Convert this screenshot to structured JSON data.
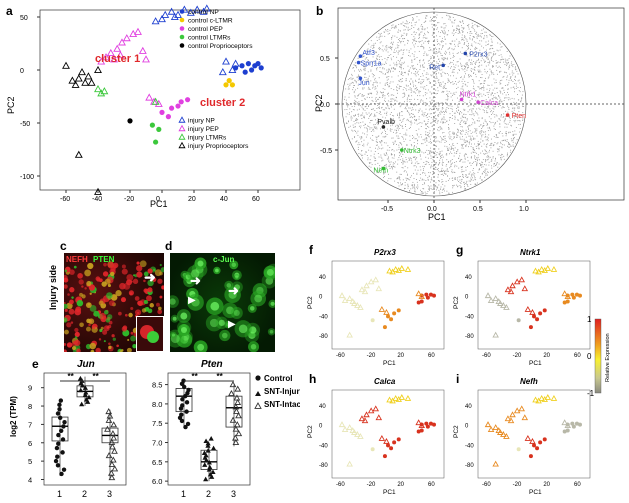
{
  "panels": {
    "a": {
      "letter": "a",
      "xlabel": "PC1",
      "ylabel": "PC2",
      "xticks": [
        "-60",
        "-40",
        "-20",
        "0",
        "20",
        "40",
        "60"
      ],
      "yticks": [
        "50",
        "0",
        "-50",
        "-100"
      ],
      "cluster1": "cluster 1",
      "cluster2": "cluster 2",
      "legend": [
        {
          "label": "control NP",
          "color": "#1d3fd0",
          "marker": "dot"
        },
        {
          "label": "control c-LTMR",
          "color": "#f4c800",
          "marker": "dot"
        },
        {
          "label": "control PEP",
          "color": "#e040e0",
          "marker": "dot"
        },
        {
          "label": "control LTMRs",
          "color": "#3cc83c",
          "marker": "dot"
        },
        {
          "label": "control Proprioceptors",
          "color": "#000000",
          "marker": "dot"
        },
        {
          "label": "injury NP",
          "color": "#1d3fd0",
          "marker": "tri"
        },
        {
          "label": "injury PEP",
          "color": "#e040e0",
          "marker": "tri"
        },
        {
          "label": "injury LTMRs",
          "color": "#3cc83c",
          "marker": "tri"
        },
        {
          "label": "injury Proprioceptors",
          "color": "#000000",
          "marker": "tri"
        }
      ]
    },
    "b": {
      "letter": "b",
      "xlabel": "PC1",
      "ylabel": "PC2",
      "xticks": [
        "-0.5",
        "0.0",
        "0.5",
        "1.0"
      ],
      "yticks": [
        "0.5",
        "0.0",
        "-0.5"
      ],
      "genes": [
        {
          "name": "Atf3",
          "color": "#3355cc"
        },
        {
          "name": "Sprr1a",
          "color": "#3355cc"
        },
        {
          "name": "Jun",
          "color": "#3355cc"
        },
        {
          "name": "Ret",
          "color": "#2244aa"
        },
        {
          "name": "P2rx3",
          "color": "#2244aa"
        },
        {
          "name": "Ntrk1",
          "color": "#d040d0"
        },
        {
          "name": "Calca",
          "color": "#d040d0"
        },
        {
          "name": "Pten",
          "color": "#e03030"
        },
        {
          "name": "Pvalb",
          "color": "#222222"
        },
        {
          "name": "Nefh",
          "color": "#33bb33"
        },
        {
          "name": "Ntrk3",
          "color": "#33bb33"
        }
      ]
    },
    "c": {
      "letter": "c",
      "label1": "NEFH",
      "label2": "PTEN",
      "side": "Injury side"
    },
    "d": {
      "letter": "d",
      "label": "c-Jun"
    },
    "e": {
      "letter": "e",
      "ylabel": "log2 (TPM)",
      "plots": [
        {
          "title": "Jun",
          "yticks": [
            "9",
            "8",
            "7",
            "6",
            "5",
            "4"
          ],
          "xticks": [
            "1",
            "2",
            "3"
          ],
          "sig1": "**",
          "sig2": "**"
        },
        {
          "title": "Pten",
          "yticks": [
            "8.5",
            "8.0",
            "7.5",
            "7.0",
            "6.5",
            "6.0"
          ],
          "xticks": [
            "1",
            "2",
            "3"
          ],
          "sig1": "**",
          "sig2": "**"
        }
      ],
      "legend": [
        "Control",
        "SNT-Injury",
        "SNT-Intact"
      ]
    },
    "f": {
      "letter": "f",
      "title": "P2rx3"
    },
    "g": {
      "letter": "g",
      "title": "Ntrk1"
    },
    "h": {
      "letter": "h",
      "title": "Calca"
    },
    "i": {
      "letter": "i",
      "title": "Nefh"
    },
    "small": {
      "xlabel": "PC1",
      "ylabel": "PC2",
      "xticks": [
        "-60",
        "-20",
        "20",
        "60"
      ],
      "yticks": [
        "40",
        "0",
        "-40",
        "-80"
      ]
    },
    "colorbar": {
      "ticks": [
        "1",
        "0",
        "-1"
      ],
      "label": "Relative Expression"
    }
  }
}
